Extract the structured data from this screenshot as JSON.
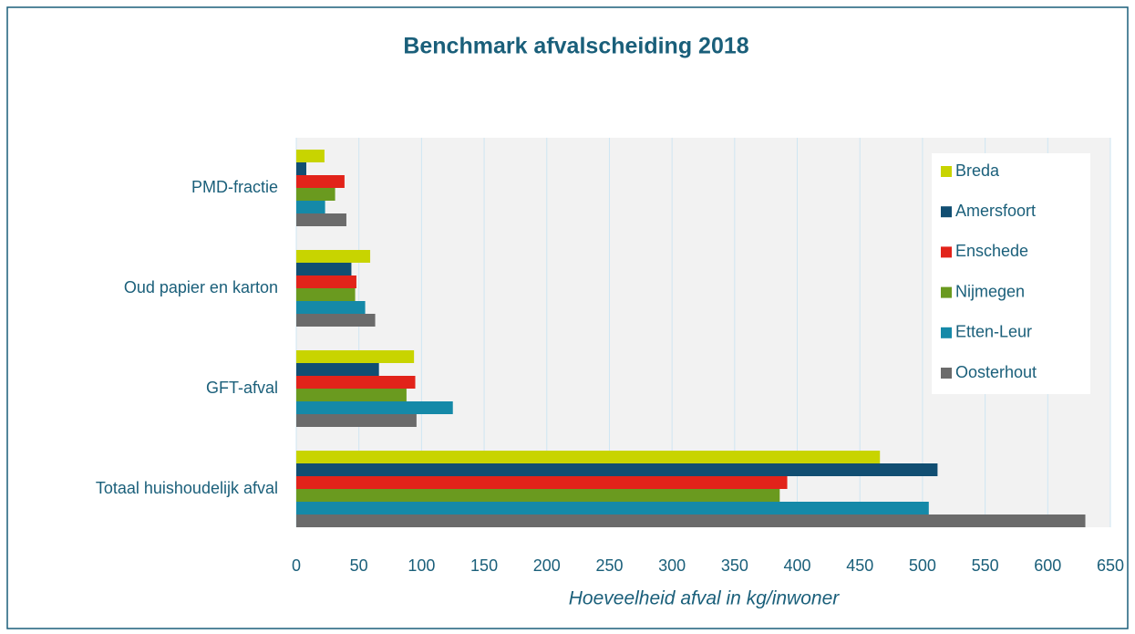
{
  "chart_data": {
    "type": "hbar",
    "title": "Benchmark afvalscheiding 2018",
    "xlabel": "Hoeveelheid afval in kg/inwoner",
    "categories": [
      "PMD-fractie",
      "Oud papier en karton",
      "GFT-afval",
      "Totaal huishoudelijk afval"
    ],
    "series": [
      {
        "name": "Breda",
        "color": "#c8d400",
        "values": [
          22.5,
          59,
          94,
          466
        ]
      },
      {
        "name": "Amersfoort",
        "color": "#114e72",
        "values": [
          8,
          44,
          66,
          512
        ]
      },
      {
        "name": "Enschede",
        "color": "#e2231a",
        "values": [
          38.5,
          48,
          95,
          392
        ]
      },
      {
        "name": "Nijmegen",
        "color": "#6a9a1f",
        "values": [
          31,
          47,
          88,
          386
        ]
      },
      {
        "name": "Etten-Leur",
        "color": "#1589a8",
        "values": [
          23,
          55,
          125,
          505
        ]
      },
      {
        "name": "Oosterhout",
        "color": "#6b6b6b",
        "values": [
          40,
          63,
          96,
          630
        ]
      }
    ],
    "xlim": [
      0,
      650
    ],
    "xticks": [
      0,
      50,
      100,
      150,
      200,
      250,
      300,
      350,
      400,
      450,
      500,
      550,
      600,
      650
    ],
    "grid": true,
    "legend": "upper right"
  }
}
